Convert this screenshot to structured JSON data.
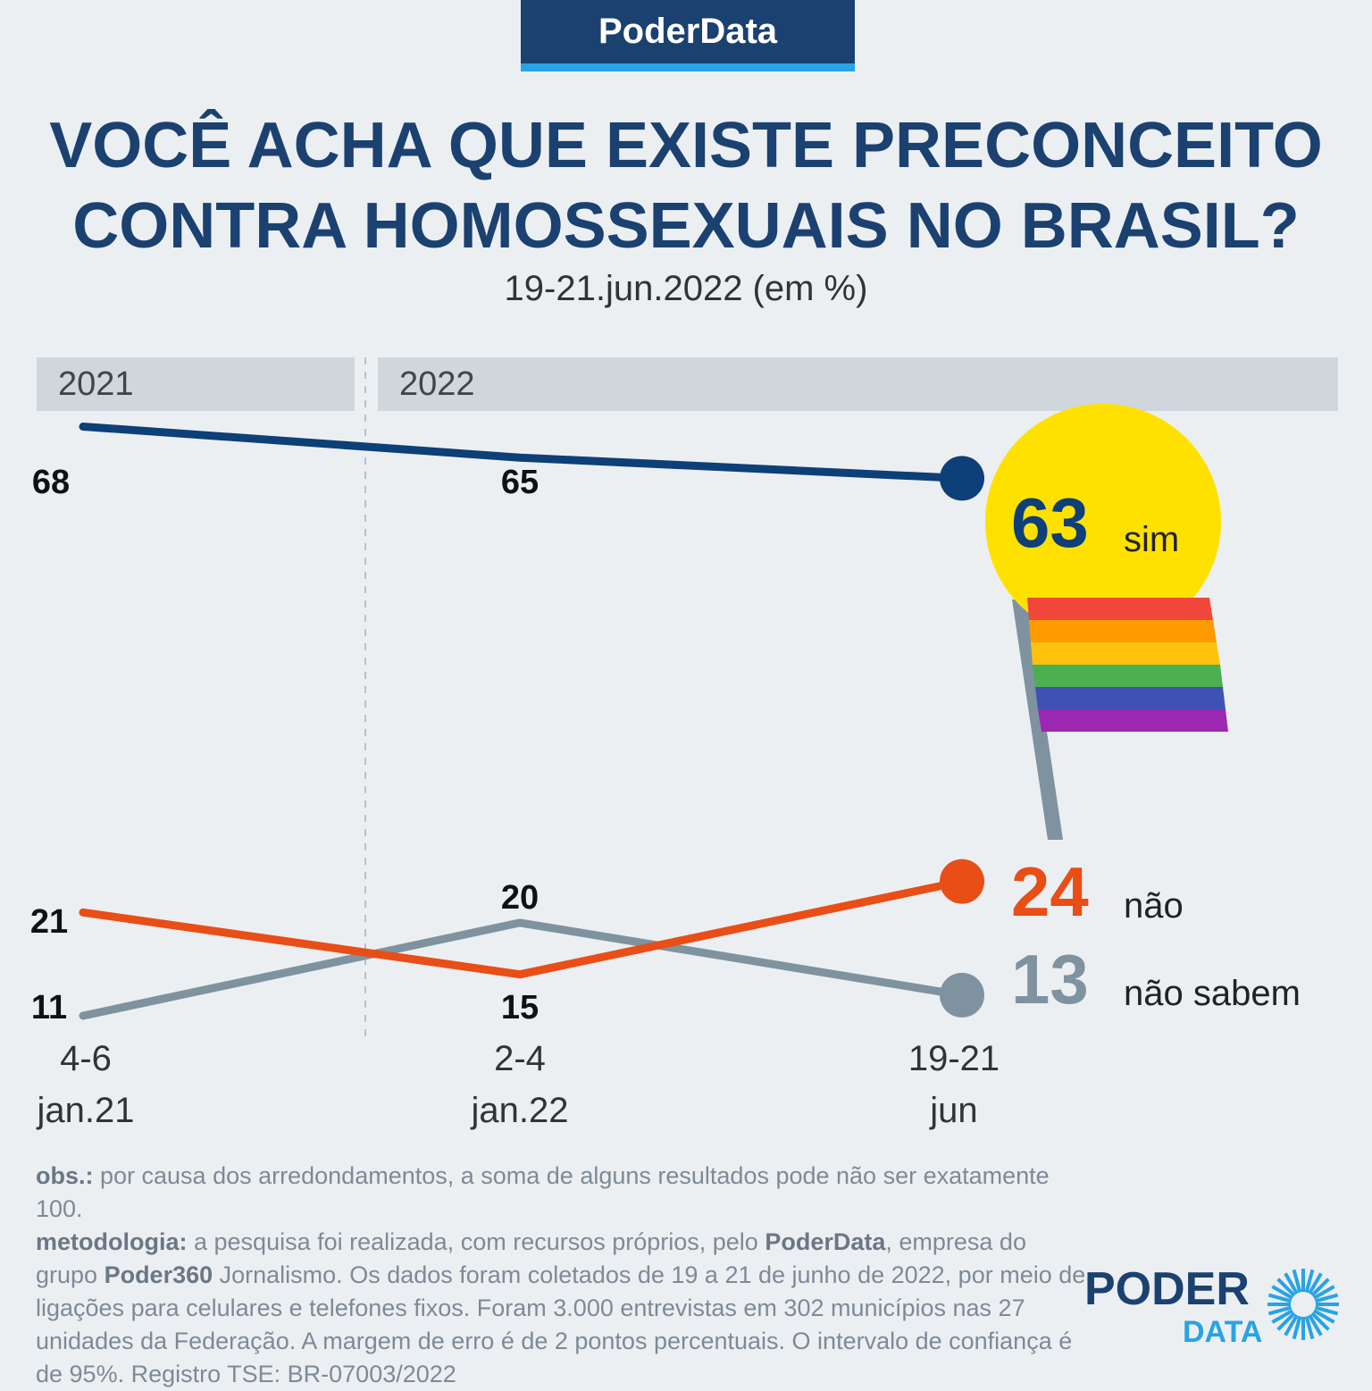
{
  "brand": "PoderData",
  "title_line1": "VOCÊ ACHA QUE EXISTE PRECONCEITO",
  "title_line2": "CONTRA HOMOSSEXUAIS NO BRASIL?",
  "subtitle": "19-21.jun.2022 (em %)",
  "years": [
    "2021",
    "2022"
  ],
  "colors": {
    "sim": "#0d3f78",
    "nao": "#e84e16",
    "nao_sabem": "#7f929f",
    "sun": "#ffe100",
    "brand_blue": "#1b4170",
    "accent_blue": "#29a3e3"
  },
  "chart_data": {
    "type": "line",
    "title": "VOCÊ ACHA QUE EXISTE PRECONCEITO CONTRA HOMOSSEXUAIS NO BRASIL?",
    "subtitle": "19-21.jun.2022 (em %)",
    "x": [
      {
        "line1": "4-6",
        "line2": "jan.21"
      },
      {
        "line1": "2-4",
        "line2": "jan.22"
      },
      {
        "line1": "19-21",
        "line2": "jun"
      }
    ],
    "series": [
      {
        "key": "sim",
        "name": "sim",
        "values": [
          68,
          65,
          63
        ]
      },
      {
        "key": "nao",
        "name": "não",
        "values": [
          21,
          15,
          24
        ]
      },
      {
        "key": "nao_sabem",
        "name": "não sabem",
        "values": [
          11,
          20,
          13
        ]
      }
    ],
    "grid": false
  },
  "footnotes": {
    "obs_label": "obs.:",
    "obs_text": " por causa dos arredondamentos, a soma de alguns resultados pode não ser exatamente 100.",
    "met_label": "metodologia:",
    "met_text1": " a pesquisa foi realizada, com recursos próprios, pelo ",
    "met_brand1": "PoderData",
    "met_text2": ", empresa do grupo ",
    "met_brand2": "Poder360",
    "met_text3": " Jornalismo. Os dados foram coletados de 19 a 21 de junho de 2022, por meio de ligações para celulares e telefones fixos. Foram 3.000 entrevistas em 302 municípios nas 27 unidades da Federação. A margem de erro é de 2 pontos percentuais. O intervalo de confiança é de 95%. Registro TSE: BR-07003/2022"
  },
  "logo": {
    "top": "PODER",
    "bottom": "DATA"
  }
}
